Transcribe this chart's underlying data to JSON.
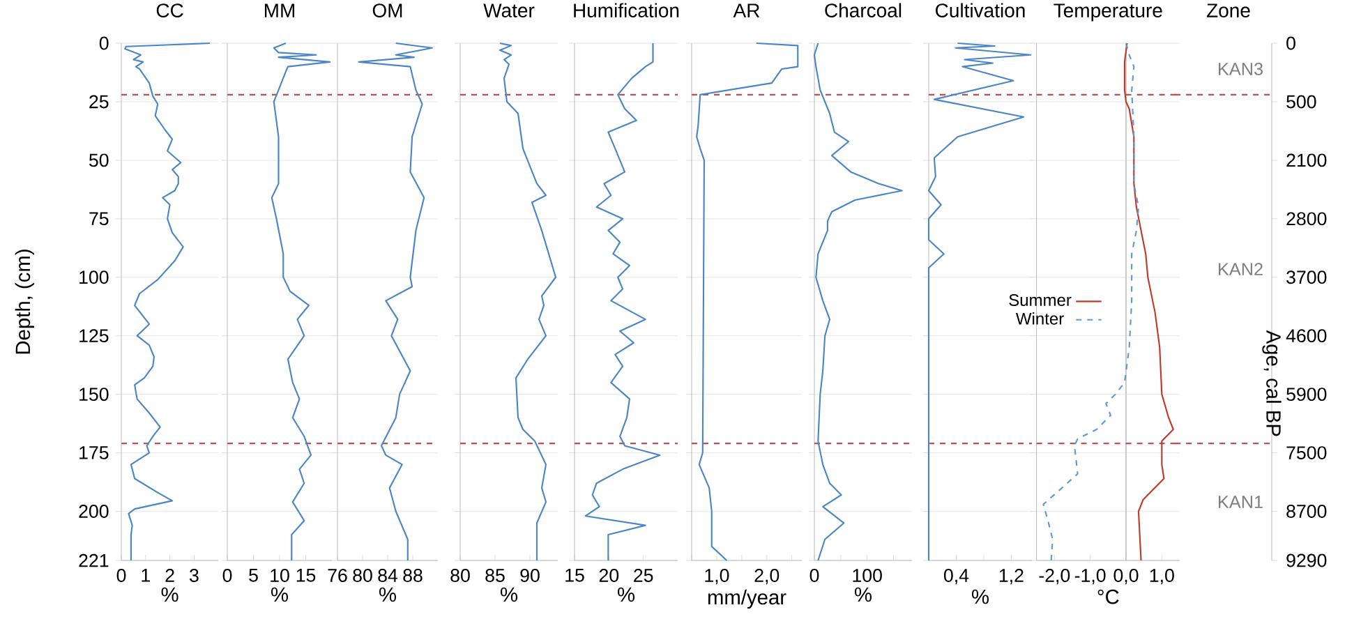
{
  "chart_data": [
    {
      "type": "line",
      "title": "CC",
      "xlabel": "%",
      "ylabel": "Depth, (cm)",
      "xlim": [
        0,
        4
      ],
      "xticks": [
        0,
        1,
        2,
        3
      ],
      "ylim": [
        221,
        0
      ],
      "yticks": [
        0,
        25,
        50,
        75,
        100,
        125,
        150,
        175,
        200,
        221
      ],
      "grid": "y",
      "series": [
        {
          "color": "#4a86c5",
          "x": [
            3.65,
            0.2,
            0.15,
            0.8,
            0.5,
            0.9,
            0.6,
            0.75,
            1.15,
            1.3,
            1.5,
            1.4,
            1.8,
            2.1,
            1.9,
            2.45,
            2.1,
            2.35,
            2.35,
            2.2,
            1.7,
            2.0,
            1.9,
            2.1,
            2.55,
            2.2,
            1.5,
            0.75,
            0.55,
            1.15,
            0.65,
            1.15,
            1.35,
            1.3,
            0.95,
            0.55,
            0.65,
            1.15,
            1.6,
            1.3,
            1.05,
            1.15,
            0.4,
            0.55,
            1.5,
            2.1,
            0.55,
            0.3,
            0.45,
            0.4,
            0.4
          ],
          "values": [
            0,
            1.4,
            2.4,
            5,
            7,
            8,
            10,
            11,
            17,
            22.6,
            26,
            31,
            37,
            41,
            46,
            51,
            54,
            57,
            60,
            63,
            66,
            69,
            75,
            81,
            87,
            93,
            101,
            107,
            112,
            120,
            125,
            129,
            134,
            138,
            143,
            146,
            152,
            158,
            164,
            168,
            172,
            175,
            180,
            186,
            192,
            195.5,
            199,
            201,
            206,
            210,
            221
          ]
        }
      ],
      "ref_lines": [
        {
          "axis": "y",
          "value": 22,
          "color": "#c0504d",
          "line_style": "dashed"
        },
        {
          "axis": "y",
          "value": 171,
          "color": "#c0504d",
          "line_style": "dashed"
        }
      ]
    },
    {
      "type": "line",
      "title": "MM",
      "xlabel": "%",
      "xlim": [
        0,
        20
      ],
      "xticks": [
        0,
        5,
        10,
        15
      ],
      "ylim": [
        221,
        0
      ],
      "yticks": [
        0,
        25,
        50,
        75,
        100,
        125,
        150,
        175,
        200,
        221
      ],
      "grid": "y",
      "tick_labels": "x",
      "series": [
        {
          "color": "#4a86c5",
          "x": [
            11.2,
            8.9,
            9.8,
            17,
            9.8,
            19.6,
            11.6,
            11.2,
            9.8,
            8.9,
            9.8,
            9.8,
            8.5,
            9.4,
            10.7,
            10.7,
            12,
            15.6,
            13.4,
            14.7,
            11.6,
            12.5,
            13.8,
            12.5,
            14.7,
            16,
            13.8,
            14.7,
            12.5,
            14.7,
            12.3,
            12.3
          ],
          "values": [
            0,
            2,
            4,
            5,
            6,
            8,
            10,
            12,
            20,
            25,
            40,
            60,
            66,
            75,
            90,
            100,
            106,
            112,
            118,
            125,
            135,
            145,
            152,
            160,
            168,
            176,
            182,
            188,
            196,
            204,
            210,
            221
          ]
        }
      ],
      "ref_lines": [
        {
          "axis": "y",
          "value": 22,
          "color": "#c0504d",
          "line_style": "dashed"
        },
        {
          "axis": "y",
          "value": 171,
          "color": "#c0504d",
          "line_style": "dashed"
        }
      ]
    },
    {
      "type": "line",
      "title": "OM",
      "xlabel": "%",
      "xlim": [
        76,
        92
      ],
      "xticks": [
        76,
        80,
        84,
        88
      ],
      "ylim": [
        221,
        0
      ],
      "yticks": [
        0,
        25,
        50,
        75,
        100,
        125,
        150,
        175,
        200,
        221
      ],
      "grid": "y",
      "tick_labels": "x",
      "series": [
        {
          "color": "#4a86c5",
          "x": [
            85.3,
            91.1,
            85.3,
            88.2,
            79.4,
            87.6,
            88.5,
            89.5,
            87.9,
            87.6,
            89.8,
            88.5,
            87.6,
            87.9,
            83.7,
            85.6,
            84.6,
            87.6,
            85.9,
            85.3,
            83.0,
            83.7,
            86.3,
            84.3,
            85.3,
            87.2,
            87.2
          ],
          "values": [
            0,
            2,
            5,
            6,
            8,
            10,
            20,
            26,
            40,
            55,
            66,
            80,
            100,
            104,
            110,
            118,
            125,
            140,
            150,
            160,
            172,
            176,
            180,
            190,
            200,
            212,
            221
          ]
        }
      ],
      "ref_lines": [
        {
          "axis": "y",
          "value": 22,
          "color": "#c0504d",
          "line_style": "dashed"
        },
        {
          "axis": "y",
          "value": 171,
          "color": "#c0504d",
          "line_style": "dashed"
        }
      ]
    },
    {
      "type": "line",
      "title": "Water",
      "xlabel": "%",
      "xlim": [
        80,
        94
      ],
      "xticks": [
        80,
        85,
        90
      ],
      "ylim": [
        221,
        0
      ],
      "yticks": [
        0,
        25,
        50,
        75,
        100,
        125,
        150,
        175,
        200,
        221
      ],
      "grid": "y",
      "tick_labels": "x",
      "series": [
        {
          "color": "#4a86c5",
          "x": [
            85.7,
            87.3,
            85.7,
            87.3,
            86.3,
            87,
            86.3,
            86.7,
            88.3,
            89,
            91,
            92.3,
            90.3,
            91.7,
            93.7,
            91.7,
            92,
            91.3,
            92.3,
            89.7,
            88,
            88.3,
            89,
            90.7,
            92.3,
            91.7,
            92.3,
            91,
            91
          ],
          "values": [
            0,
            1,
            3,
            5,
            7,
            9,
            15,
            25,
            30,
            45,
            60,
            65,
            68,
            80,
            100,
            108,
            112,
            118,
            125,
            135,
            143,
            160,
            165,
            170,
            180,
            190,
            196,
            205,
            221
          ]
        }
      ],
      "ref_lines": [
        {
          "axis": "y",
          "value": 22,
          "color": "#c0504d",
          "line_style": "dashed"
        },
        {
          "axis": "y",
          "value": 171,
          "color": "#c0504d",
          "line_style": "dashed"
        }
      ]
    },
    {
      "type": "line",
      "title": "Humification",
      "xlabel": "%",
      "xlim": [
        15,
        30
      ],
      "xticks": [
        15,
        20,
        25
      ],
      "ylim": [
        221,
        0
      ],
      "yticks": [
        0,
        25,
        50,
        75,
        100,
        125,
        150,
        175,
        200,
        221
      ],
      "grid": "y",
      "tick_labels": "x",
      "series": [
        {
          "color": "#4a86c5",
          "x": [
            26.4,
            26.4,
            25.3,
            23.3,
            21.3,
            22.3,
            24,
            19.9,
            20.9,
            21.6,
            22.3,
            19.3,
            20.3,
            18.2,
            22,
            19.9,
            21.6,
            20.6,
            23,
            21.3,
            22,
            20.3,
            25.3,
            21.6,
            23.6,
            20.9,
            22,
            20.3,
            23,
            22.6,
            21.6,
            22.3,
            27.4,
            22,
            18.2,
            17.6,
            18.6,
            16.6,
            25.3,
            19.9,
            19.9
          ],
          "values": [
            0,
            8,
            10,
            15,
            22,
            28,
            33,
            38,
            45,
            50,
            55,
            60,
            65,
            70,
            75,
            80,
            85,
            90,
            95,
            100,
            105,
            110,
            118,
            123,
            128,
            133,
            138,
            145,
            152,
            160,
            168,
            172,
            176,
            182,
            188,
            193,
            198,
            202,
            206,
            210,
            221
          ]
        }
      ],
      "ref_lines": [
        {
          "axis": "y",
          "value": 22,
          "color": "#c0504d",
          "line_style": "dashed"
        },
        {
          "axis": "y",
          "value": 171,
          "color": "#c0504d",
          "line_style": "dashed"
        }
      ]
    },
    {
      "type": "line",
      "title": "AR",
      "xlabel": "mm/year",
      "xlim": [
        0.5,
        2.7
      ],
      "xticks": [
        {
          "value": 0.5,
          "label": null
        },
        {
          "value": 1,
          "label": "1,0"
        },
        {
          "value": 1.5,
          "label": null
        },
        {
          "value": 2,
          "label": "2,0"
        },
        {
          "value": 2.5,
          "label": null
        }
      ],
      "ylim": [
        221,
        0
      ],
      "yticks": [
        0,
        25,
        50,
        75,
        100,
        125,
        150,
        175,
        200,
        221
      ],
      "grid": "y",
      "tick_labels": "x",
      "series": [
        {
          "color": "#4a86c5",
          "x": [
            1.79,
            2.62,
            2.62,
            2.3,
            2.1,
            0.67,
            0.63,
            0.6,
            0.67,
            0.75,
            0.72,
            0.65,
            0.85,
            0.9,
            0.9,
            1.2
          ],
          "values": [
            0,
            1,
            10,
            11,
            17,
            22,
            35,
            40,
            45,
            50,
            175,
            180,
            190,
            200,
            215,
            221
          ]
        }
      ],
      "ref_lines": [
        {
          "axis": "y",
          "value": 22,
          "color": "#c0504d",
          "line_style": "dashed"
        },
        {
          "axis": "y",
          "value": 171,
          "color": "#c0504d",
          "line_style": "dashed"
        }
      ]
    },
    {
      "type": "line",
      "title": "Charcoal",
      "xlabel": "%",
      "xlim": [
        0,
        185
      ],
      "xticks": [
        0,
        {
          "value": 50,
          "label": null
        },
        100,
        {
          "value": 150,
          "label": null
        }
      ],
      "ylim": [
        221,
        0
      ],
      "yticks": [
        0,
        25,
        50,
        75,
        100,
        125,
        150,
        175,
        200,
        221
      ],
      "grid": "y",
      "tick_labels": "x",
      "series": [
        {
          "color": "#4a86c5",
          "x": [
            7,
            0,
            3,
            11,
            29,
            38,
            65,
            33,
            69,
            122,
            166,
            77,
            33,
            25,
            25,
            7,
            3,
            16,
            29,
            20,
            16,
            11,
            7,
            16,
            29,
            51,
            16,
            56,
            20,
            7
          ],
          "values": [
            0,
            5,
            10,
            20,
            30,
            38,
            42,
            48,
            55,
            60,
            63,
            67,
            72,
            76,
            80,
            90,
            100,
            110,
            118,
            125,
            140,
            150,
            170,
            180,
            188,
            193,
            198,
            205,
            212,
            221
          ]
        }
      ],
      "ref_lines": [
        {
          "axis": "y",
          "value": 22,
          "color": "#c0504d",
          "line_style": "dashed"
        },
        {
          "axis": "y",
          "value": 171,
          "color": "#c0504d",
          "line_style": "dashed"
        }
      ]
    },
    {
      "type": "line",
      "title": "Cultivation",
      "xlabel": "%",
      "xlim": [
        0,
        1.5
      ],
      "xticks": [
        {
          "value": 0,
          "label": null
        },
        {
          "value": 0.4,
          "label": "0,4"
        },
        {
          "value": 0.8,
          "label": null
        },
        {
          "value": 1.2,
          "label": "1,2"
        }
      ],
      "ylim": [
        221,
        0
      ],
      "yticks": [
        0,
        25,
        50,
        75,
        100,
        125,
        150,
        175,
        200,
        221
      ],
      "grid": "y",
      "tick_labels": "x",
      "series": [
        {
          "color": "#4a86c5",
          "x": [
            0.42,
            0.96,
            0.39,
            1.48,
            0.52,
            0.93,
            0.49,
            1.23,
            0.08,
            1.38,
            0.42,
            0.08,
            0.1,
            0.0,
            0.18,
            0.0,
            0.0,
            0.22,
            0.0,
            0.0
          ],
          "values": [
            0,
            1.2,
            2,
            5,
            7,
            8.5,
            10,
            16,
            24,
            31.5,
            40,
            49,
            57,
            63,
            69,
            75,
            84,
            90,
            96,
            221
          ]
        }
      ],
      "ref_lines": [
        {
          "axis": "y",
          "value": 22,
          "color": "#c0504d",
          "line_style": "dashed"
        },
        {
          "axis": "y",
          "value": 171,
          "color": "#c0504d",
          "line_style": "dashed"
        }
      ]
    },
    {
      "type": "line",
      "title": "Temperature",
      "xlabel": "°C",
      "xlim": [
        -2.5,
        1.5
      ],
      "xticks": [
        {
          "value": -2,
          "label": "-2,0"
        },
        {
          "value": -1,
          "label": "-1,0"
        },
        {
          "value": 0,
          "label": "0,0"
        },
        {
          "value": 1,
          "label": "1,0"
        }
      ],
      "ylim": [
        221,
        0
      ],
      "yticks": [
        0,
        25,
        50,
        75,
        100,
        125,
        150,
        175,
        200,
        221
      ],
      "grid": "y",
      "tick_labels": "x",
      "legend": "left",
      "series": [
        {
          "name": "Summer",
          "color": "#c0392b",
          "line_style": "solid",
          "x": [
            0.03,
            -0.04,
            -0.04,
            0,
            0.09,
            0.22,
            0.22,
            0.29,
            0.42,
            0.55,
            0.61,
            0.81,
            0.94,
            1.0,
            1.19,
            1.32,
            1.0,
            1.0,
            1.06,
            0.48,
            0.35,
            0.42
          ],
          "values": [
            0,
            8,
            20,
            25,
            28,
            40,
            60,
            70,
            80,
            90,
            100,
            115,
            130,
            150,
            160,
            165,
            170,
            180,
            186,
            195,
            200,
            221
          ]
        },
        {
          "name": "Winter",
          "color": "#5b9bd5",
          "line_style": "dashed",
          "x": [
            0.0,
            0.09,
            0.22,
            0.16,
            0.22,
            0.22,
            0.35,
            0.29,
            0.16,
            0.16,
            0.09,
            -0.04,
            -0.3,
            -0.56,
            -0.43,
            -0.82,
            -1.35,
            -1.44,
            -1.35,
            -1.79,
            -2.31,
            -2.18,
            -2.05,
            -2.09
          ],
          "values": [
            0,
            5,
            10,
            20,
            40,
            60,
            70,
            80,
            90,
            110,
            130,
            145,
            150,
            154,
            159,
            165,
            169,
            172,
            184,
            190,
            197,
            204,
            212,
            221
          ]
        }
      ],
      "ref_lines": [
        {
          "axis": "x",
          "value": 0,
          "color": "#bfbfbf",
          "line_style": "solid"
        },
        {
          "axis": "y",
          "value": 22,
          "color": "#c0504d",
          "line_style": "dashed"
        },
        {
          "axis": "y",
          "value": 171,
          "color": "#c0504d",
          "line_style": "dashed"
        }
      ]
    },
    {
      "type": "other",
      "title": "Zone",
      "annotations": [
        "KAN3",
        "KAN2",
        "KAN1",
        "0",
        "500",
        "2100",
        "2800",
        "3700",
        "4600",
        "5900",
        "7500",
        "8700",
        "9290"
      ],
      "y2label": "Age, cal BP"
    }
  ]
}
